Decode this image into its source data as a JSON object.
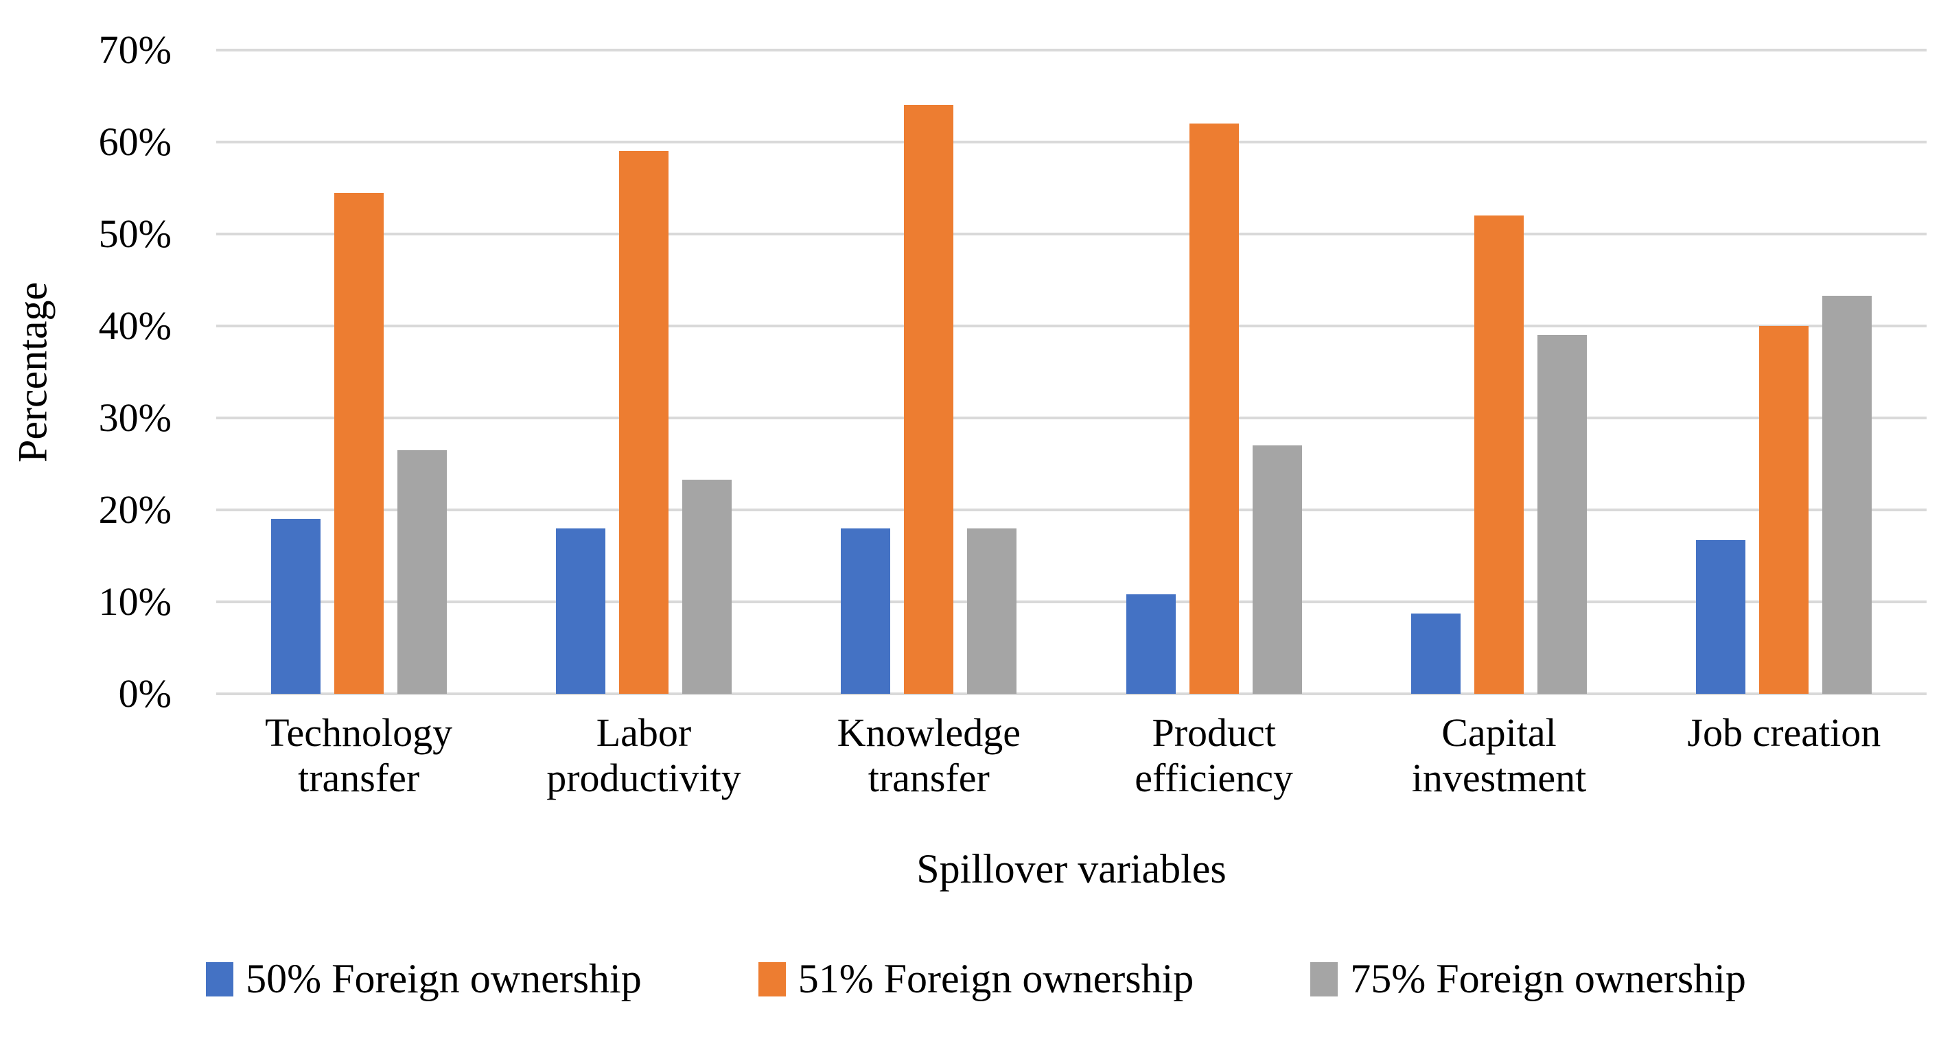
{
  "chart_data": {
    "type": "bar",
    "title": "",
    "categories": [
      "Technology transfer",
      "Labor productivity",
      "Knowledge transfer",
      "Product efficiency",
      "Capital investment",
      "Job creation"
    ],
    "series": [
      {
        "name": "50% Foreign ownership",
        "color": "#4472C4",
        "values": [
          19,
          18,
          18,
          10.8,
          8.7,
          16.7
        ]
      },
      {
        "name": "51% Foreign ownership",
        "color": "#ED7D31",
        "values": [
          54.5,
          59,
          64,
          62,
          52,
          40
        ]
      },
      {
        "name": "75% Foreign ownership",
        "color": "#A5A5A5",
        "values": [
          26.5,
          23.3,
          18,
          27,
          39,
          43.3
        ]
      }
    ],
    "xlabel": "Spillover variables",
    "ylabel": "Percentage",
    "ylim": [
      0,
      70
    ],
    "ytick_step": 10,
    "ytick_labels": [
      "0%",
      "10%",
      "20%",
      "30%",
      "40%",
      "50%",
      "60%",
      "70%"
    ],
    "grid": true,
    "gridline_color": "#D9D9D9",
    "legend_position": "bottom",
    "background_color": "#FFFFFF",
    "text_color": "#000000"
  }
}
